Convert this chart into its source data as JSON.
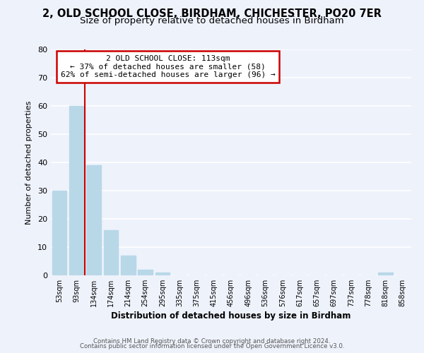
{
  "title1": "2, OLD SCHOOL CLOSE, BIRDHAM, CHICHESTER, PO20 7ER",
  "title2": "Size of property relative to detached houses in Birdham",
  "xlabel": "Distribution of detached houses by size in Birdham",
  "ylabel": "Number of detached properties",
  "bar_labels": [
    "53sqm",
    "93sqm",
    "134sqm",
    "174sqm",
    "214sqm",
    "254sqm",
    "295sqm",
    "335sqm",
    "375sqm",
    "415sqm",
    "456sqm",
    "496sqm",
    "536sqm",
    "576sqm",
    "617sqm",
    "657sqm",
    "697sqm",
    "737sqm",
    "778sqm",
    "818sqm",
    "858sqm"
  ],
  "bar_values": [
    30,
    60,
    39,
    16,
    7,
    2,
    1,
    0,
    0,
    0,
    0,
    0,
    0,
    0,
    0,
    0,
    0,
    0,
    0,
    1,
    0
  ],
  "bar_color": "#b8d8e8",
  "property_line_x": 1.49,
  "annotation_title": "2 OLD SCHOOL CLOSE: 113sqm",
  "annotation_line1": "← 37% of detached houses are smaller (58)",
  "annotation_line2": "62% of semi-detached houses are larger (96) →",
  "annotation_box_color": "#ffffff",
  "annotation_box_edge": "#cc0000",
  "vertical_line_color": "#cc0000",
  "ylim": [
    0,
    80
  ],
  "yticks": [
    0,
    10,
    20,
    30,
    40,
    50,
    60,
    70,
    80
  ],
  "footer1": "Contains HM Land Registry data © Crown copyright and database right 2024.",
  "footer2": "Contains public sector information licensed under the Open Government Licence v3.0.",
  "background_color": "#eef2fb",
  "grid_color": "#ffffff",
  "title1_fontsize": 10.5,
  "title2_fontsize": 9.5
}
